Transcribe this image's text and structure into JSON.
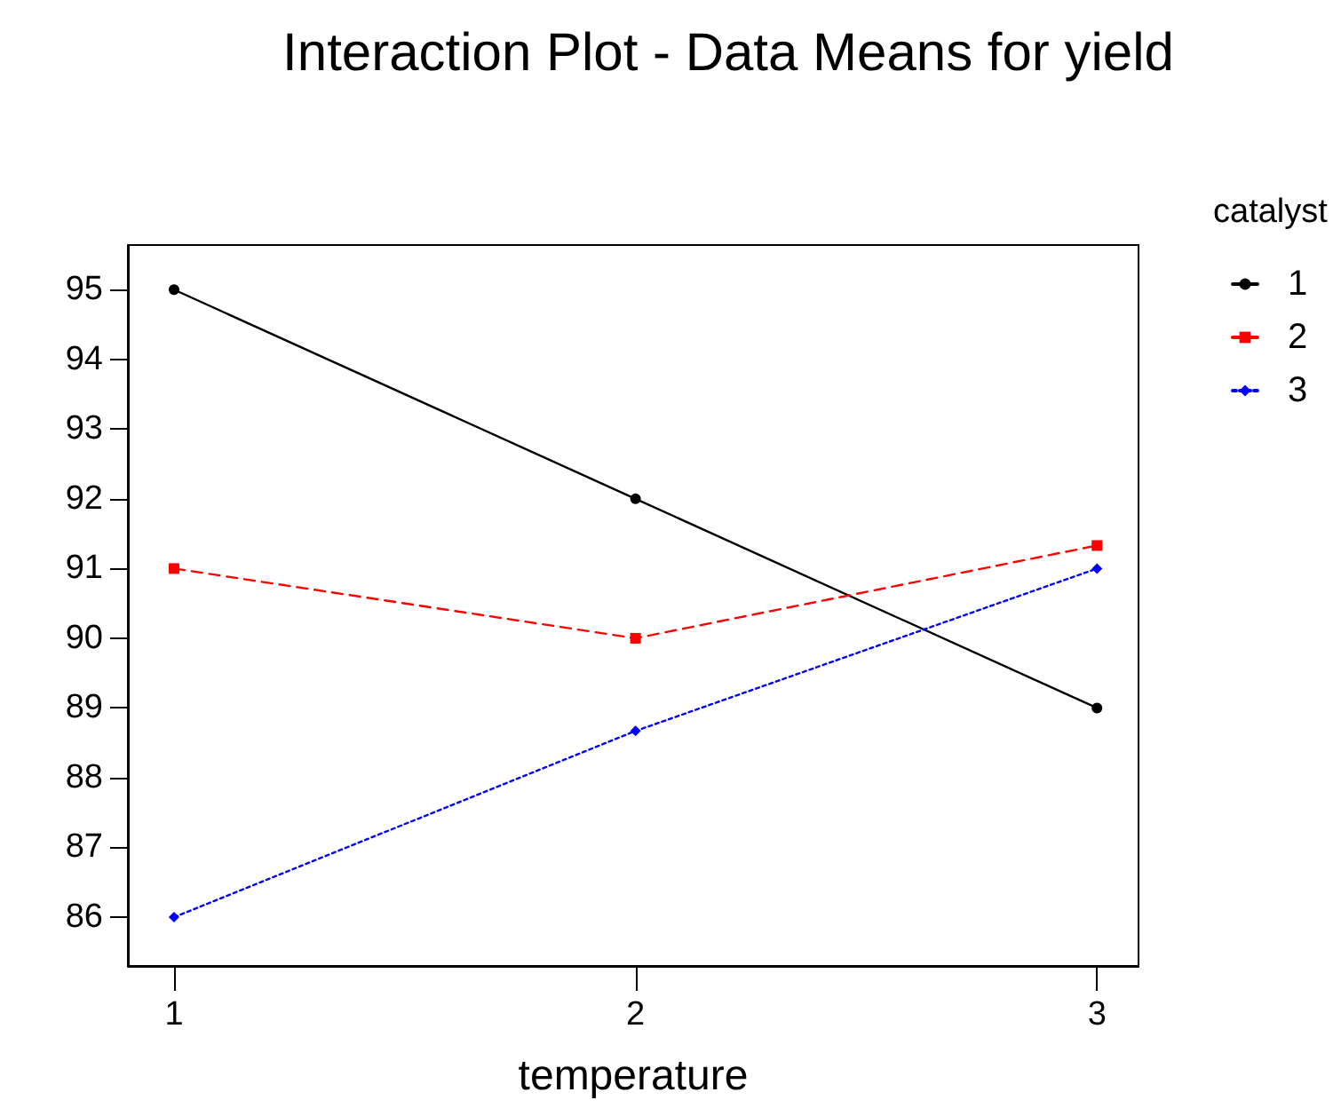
{
  "chart_data": {
    "type": "line",
    "title": "Interaction Plot - Data Means for yield",
    "xlabel": "temperature",
    "legend_title": "catalyst",
    "x": [
      1,
      2,
      3
    ],
    "series": [
      {
        "name": "1",
        "color": "#000000",
        "values": [
          95,
          92,
          89
        ],
        "marker": "circle",
        "line_style": "solid"
      },
      {
        "name": "2",
        "color": "#ff0000",
        "values": [
          91,
          90,
          91.33
        ],
        "marker": "square",
        "line_style": "dashed"
      },
      {
        "name": "3",
        "color": "#0000ff",
        "values": [
          86,
          88.67,
          91
        ],
        "marker": "diamond",
        "line_style": "dotted"
      }
    ],
    "xlim": [
      0.9,
      3.09
    ],
    "xticks": [
      1,
      2,
      3
    ],
    "ylim": [
      85.3,
      95.64
    ],
    "yticks": [
      86,
      87,
      88,
      89,
      90,
      91,
      92,
      93,
      94,
      95
    ],
    "grid": false,
    "legend": "right"
  }
}
